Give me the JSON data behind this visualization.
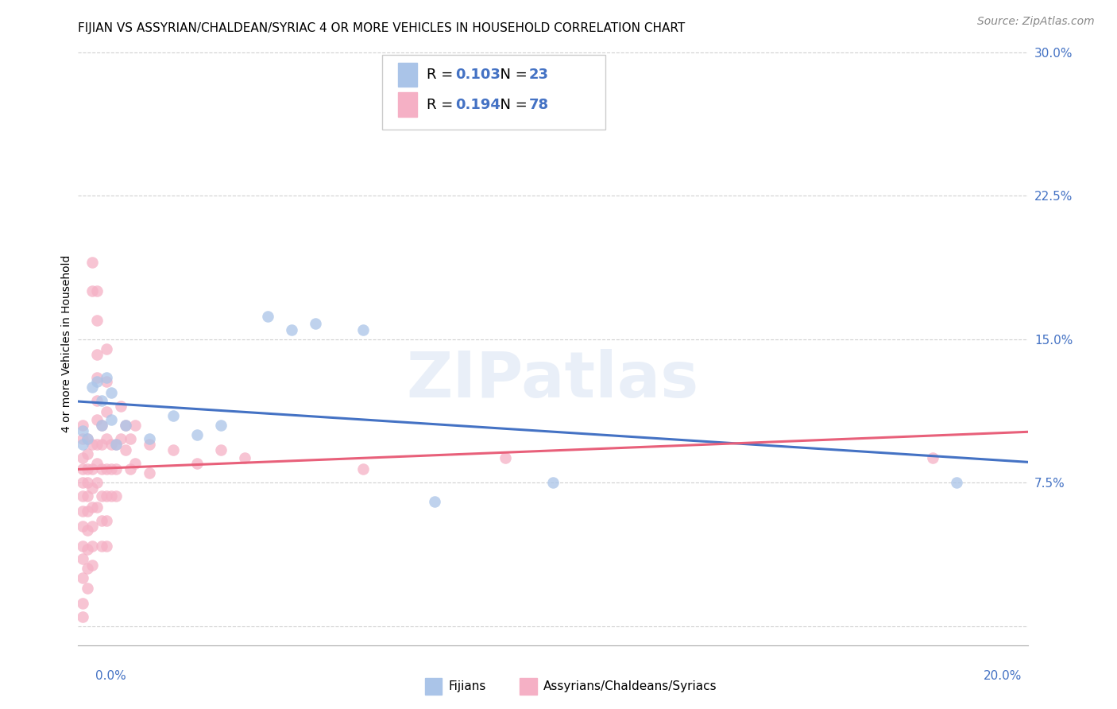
{
  "title": "FIJIAN VS ASSYRIAN/CHALDEAN/SYRIAC 4 OR MORE VEHICLES IN HOUSEHOLD CORRELATION CHART",
  "source": "Source: ZipAtlas.com",
  "ylabel": "4 or more Vehicles in Household",
  "fijian_R": 0.103,
  "fijian_N": 23,
  "assyrian_R": 0.194,
  "assyrian_N": 78,
  "legend_label_fijian": "Fijians",
  "legend_label_assyrian": "Assyrians/Chaldeans/Syriacs",
  "fijian_color": "#aac4e8",
  "assyrian_color": "#f5b0c5",
  "fijian_line_color": "#4472c4",
  "assyrian_line_color": "#e8607a",
  "watermark": "ZIPatlas",
  "xmin": 0.0,
  "xmax": 0.2,
  "ymin": -0.01,
  "ymax": 0.305,
  "fijian_points": [
    [
      0.001,
      0.102
    ],
    [
      0.001,
      0.095
    ],
    [
      0.002,
      0.098
    ],
    [
      0.003,
      0.125
    ],
    [
      0.004,
      0.128
    ],
    [
      0.005,
      0.118
    ],
    [
      0.005,
      0.105
    ],
    [
      0.006,
      0.13
    ],
    [
      0.007,
      0.122
    ],
    [
      0.007,
      0.108
    ],
    [
      0.008,
      0.095
    ],
    [
      0.01,
      0.105
    ],
    [
      0.015,
      0.098
    ],
    [
      0.02,
      0.11
    ],
    [
      0.025,
      0.1
    ],
    [
      0.03,
      0.105
    ],
    [
      0.04,
      0.162
    ],
    [
      0.045,
      0.155
    ],
    [
      0.05,
      0.158
    ],
    [
      0.06,
      0.155
    ],
    [
      0.075,
      0.065
    ],
    [
      0.1,
      0.075
    ],
    [
      0.185,
      0.075
    ]
  ],
  "assyrian_points": [
    [
      0.001,
      0.105
    ],
    [
      0.001,
      0.098
    ],
    [
      0.001,
      0.088
    ],
    [
      0.001,
      0.082
    ],
    [
      0.001,
      0.075
    ],
    [
      0.001,
      0.068
    ],
    [
      0.001,
      0.06
    ],
    [
      0.001,
      0.052
    ],
    [
      0.001,
      0.042
    ],
    [
      0.001,
      0.035
    ],
    [
      0.001,
      0.025
    ],
    [
      0.001,
      0.012
    ],
    [
      0.001,
      0.005
    ],
    [
      0.002,
      0.098
    ],
    [
      0.002,
      0.09
    ],
    [
      0.002,
      0.082
    ],
    [
      0.002,
      0.075
    ],
    [
      0.002,
      0.068
    ],
    [
      0.002,
      0.06
    ],
    [
      0.002,
      0.05
    ],
    [
      0.002,
      0.04
    ],
    [
      0.002,
      0.03
    ],
    [
      0.002,
      0.02
    ],
    [
      0.003,
      0.19
    ],
    [
      0.003,
      0.175
    ],
    [
      0.003,
      0.095
    ],
    [
      0.003,
      0.082
    ],
    [
      0.003,
      0.072
    ],
    [
      0.003,
      0.062
    ],
    [
      0.003,
      0.052
    ],
    [
      0.003,
      0.042
    ],
    [
      0.003,
      0.032
    ],
    [
      0.004,
      0.175
    ],
    [
      0.004,
      0.16
    ],
    [
      0.004,
      0.142
    ],
    [
      0.004,
      0.13
    ],
    [
      0.004,
      0.118
    ],
    [
      0.004,
      0.108
    ],
    [
      0.004,
      0.095
    ],
    [
      0.004,
      0.085
    ],
    [
      0.004,
      0.075
    ],
    [
      0.004,
      0.062
    ],
    [
      0.005,
      0.105
    ],
    [
      0.005,
      0.095
    ],
    [
      0.005,
      0.082
    ],
    [
      0.005,
      0.068
    ],
    [
      0.005,
      0.055
    ],
    [
      0.005,
      0.042
    ],
    [
      0.006,
      0.145
    ],
    [
      0.006,
      0.128
    ],
    [
      0.006,
      0.112
    ],
    [
      0.006,
      0.098
    ],
    [
      0.006,
      0.082
    ],
    [
      0.006,
      0.068
    ],
    [
      0.006,
      0.055
    ],
    [
      0.006,
      0.042
    ],
    [
      0.007,
      0.095
    ],
    [
      0.007,
      0.082
    ],
    [
      0.007,
      0.068
    ],
    [
      0.008,
      0.095
    ],
    [
      0.008,
      0.082
    ],
    [
      0.008,
      0.068
    ],
    [
      0.009,
      0.115
    ],
    [
      0.009,
      0.098
    ],
    [
      0.01,
      0.105
    ],
    [
      0.01,
      0.092
    ],
    [
      0.011,
      0.098
    ],
    [
      0.011,
      0.082
    ],
    [
      0.012,
      0.105
    ],
    [
      0.012,
      0.085
    ],
    [
      0.015,
      0.095
    ],
    [
      0.015,
      0.08
    ],
    [
      0.02,
      0.092
    ],
    [
      0.025,
      0.085
    ],
    [
      0.03,
      0.092
    ],
    [
      0.035,
      0.088
    ],
    [
      0.06,
      0.082
    ],
    [
      0.09,
      0.088
    ],
    [
      0.18,
      0.088
    ]
  ],
  "title_fontsize": 11,
  "source_fontsize": 10,
  "axis_label_fontsize": 10
}
